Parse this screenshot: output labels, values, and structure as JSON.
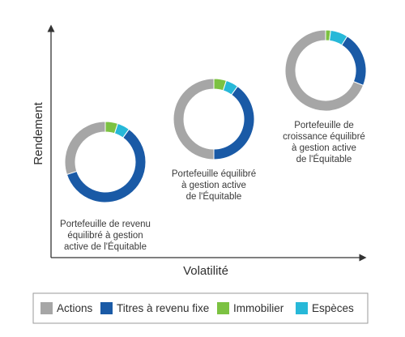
{
  "chart_data": {
    "type": "pie",
    "subtype": "donut-scatter",
    "xlabel": "Volatilité",
    "ylabel": "Rendement",
    "colors": {
      "Actions": "#a6a6a6",
      "Titres à revenu fixe": "#1a5aa6",
      "Immobilier": "#7cc242",
      "Espèces": "#27b8d8",
      "axis": "#333333"
    },
    "categories": [
      "Actions",
      "Titres à revenu fixe",
      "Immobilier",
      "Espèces"
    ],
    "portfolios": [
      {
        "label": [
          "Portefeuille de revenu",
          "équilibré à gestion",
          "active de l'Équitable"
        ],
        "volatility_rank": 1,
        "return_rank": 1,
        "values": [
          30,
          60,
          5,
          5
        ]
      },
      {
        "label": [
          "Portefeuille équilibré",
          "à gestion active",
          "de l'Équitable"
        ],
        "volatility_rank": 2,
        "return_rank": 2,
        "values": [
          50,
          40,
          5,
          5
        ]
      },
      {
        "label": [
          "Portefeuille de",
          "croissance équilibré",
          "à gestion active",
          "de l'Équitable"
        ],
        "volatility_rank": 3,
        "return_rank": 3,
        "values": [
          69,
          22,
          2,
          7
        ]
      }
    ],
    "legend": {
      "position": "bottom",
      "items": [
        "Actions",
        "Titres à revenu fixe",
        "Immobilier",
        "Espèces"
      ]
    },
    "grid": false
  }
}
